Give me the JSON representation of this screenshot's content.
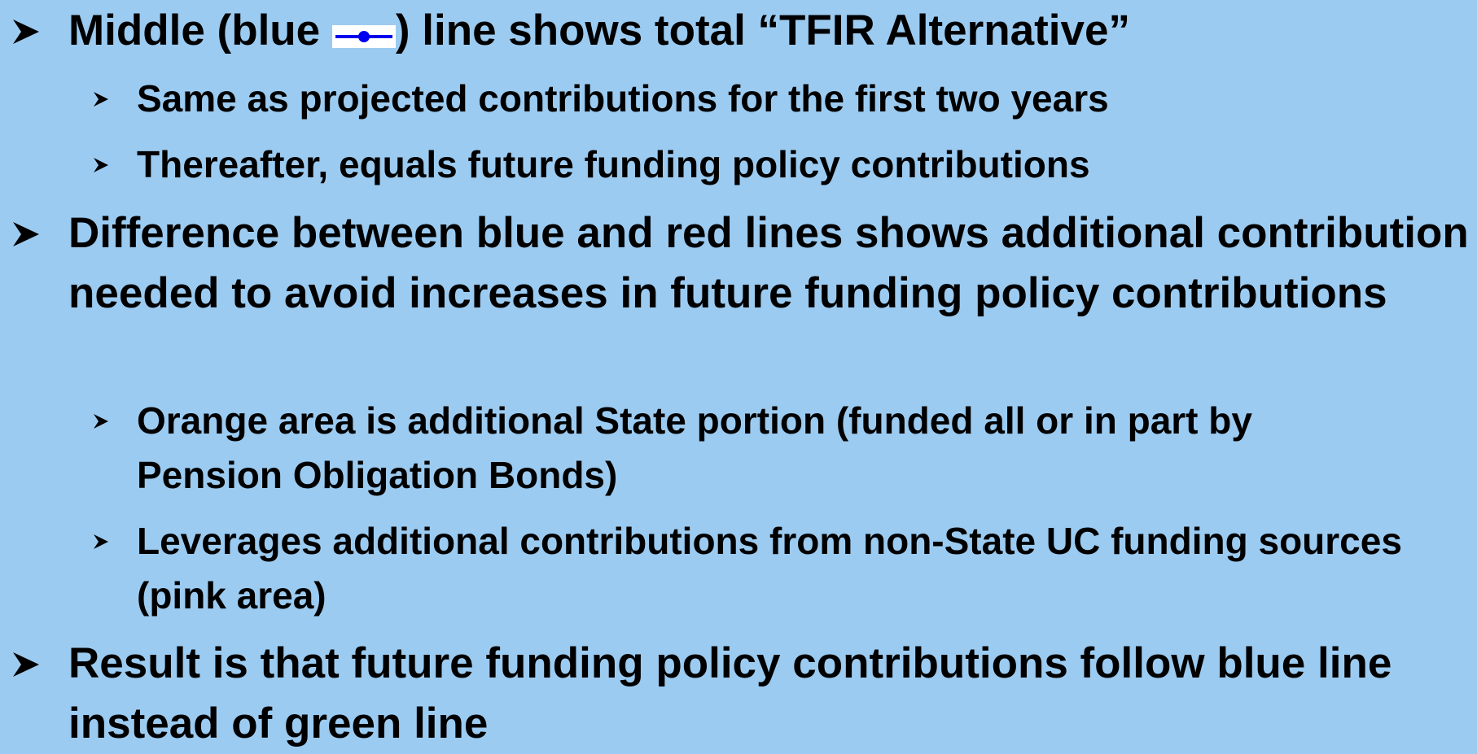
{
  "items": [
    {
      "text_parts": [
        "Middle (blue ",
        ") line shows total “TFIR Alternative”"
      ],
      "subitems": [
        "Same as projected contributions for the first two years",
        "Thereafter, equals future funding policy contributions"
      ]
    },
    {
      "text": "Difference between blue and red lines shows additional contribution needed to avoid increases in future funding policy contributions",
      "subitems": [
        "Orange area is additional State portion (funded all or in part by Pension Obligation Bonds)",
        "Leverages additional contributions from non-State UC funding sources (pink area)"
      ]
    },
    {
      "text": "Result is that future funding policy contributions follow blue line instead of green line"
    }
  ]
}
